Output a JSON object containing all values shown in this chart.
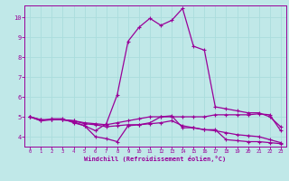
{
  "xlabel": "Windchill (Refroidissement éolien,°C)",
  "xlim": [
    -0.5,
    23.5
  ],
  "ylim": [
    3.5,
    10.6
  ],
  "yticks": [
    4,
    5,
    6,
    7,
    8,
    9,
    10
  ],
  "xticks": [
    0,
    1,
    2,
    3,
    4,
    5,
    6,
    7,
    8,
    9,
    10,
    11,
    12,
    13,
    14,
    15,
    16,
    17,
    18,
    19,
    20,
    21,
    22,
    23
  ],
  "bg_color": "#c0e8e8",
  "line_color": "#990099",
  "grid_color": "#aadddd",
  "lines": [
    [
      5.0,
      4.8,
      4.9,
      4.9,
      4.7,
      4.55,
      4.3,
      4.65,
      6.1,
      8.8,
      9.5,
      9.95,
      9.6,
      9.85,
      10.45,
      8.55,
      8.35,
      5.5,
      5.4,
      5.3,
      5.2,
      5.2,
      5.0,
      4.5
    ],
    [
      5.0,
      4.8,
      4.85,
      4.85,
      4.75,
      4.55,
      4.0,
      3.9,
      3.75,
      4.55,
      4.6,
      4.7,
      5.0,
      5.05,
      4.45,
      4.45,
      4.35,
      4.35,
      3.85,
      3.8,
      3.75,
      3.75,
      3.7,
      3.65
    ],
    [
      5.0,
      4.85,
      4.85,
      4.85,
      4.8,
      4.7,
      4.65,
      4.6,
      4.7,
      4.8,
      4.9,
      5.0,
      5.0,
      5.0,
      5.0,
      5.0,
      5.0,
      5.1,
      5.1,
      5.1,
      5.1,
      5.15,
      5.1,
      4.3
    ],
    [
      5.0,
      4.85,
      4.85,
      4.85,
      4.8,
      4.65,
      4.6,
      4.5,
      4.55,
      4.6,
      4.6,
      4.65,
      4.7,
      4.8,
      4.55,
      4.45,
      4.35,
      4.3,
      4.2,
      4.1,
      4.05,
      4.0,
      3.85,
      3.7
    ]
  ]
}
